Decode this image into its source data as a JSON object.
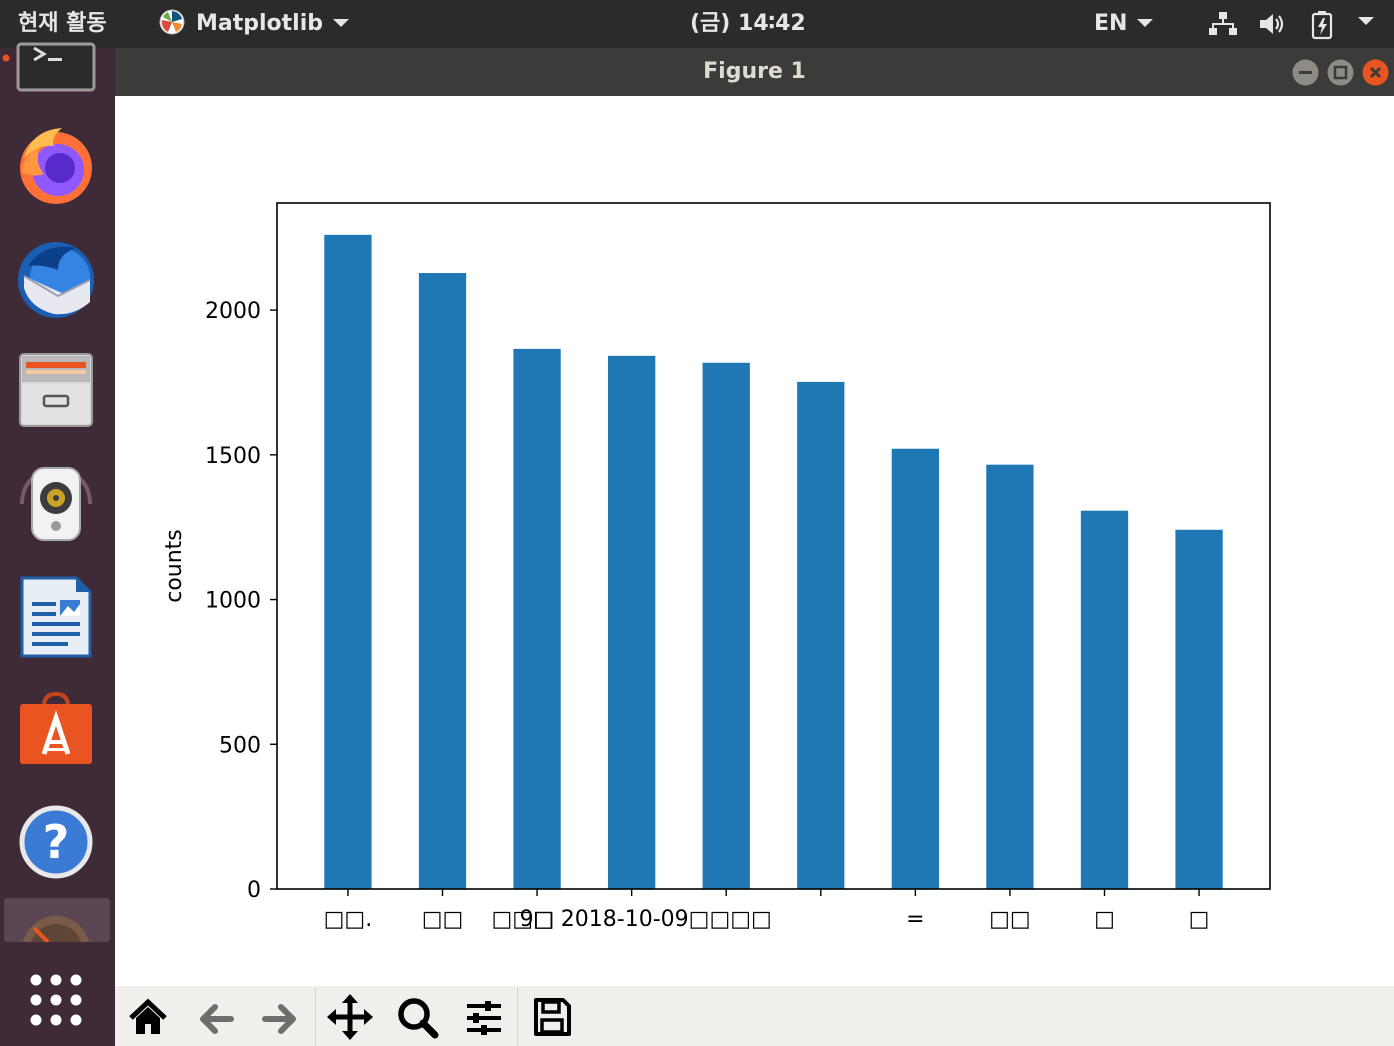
{
  "topbar": {
    "activities": "현재 활동",
    "app_menu": "Matplotlib",
    "clock": "(금) 14∶42",
    "lang": "EN"
  },
  "dock": {
    "items": [
      "terminal",
      "firefox",
      "thunderbird",
      "files",
      "rhythmbox",
      "libreoffice-writer",
      "ubuntu-software",
      "help",
      "settings",
      "show-applications"
    ]
  },
  "window": {
    "title": "Figure 1"
  },
  "toolbar": {
    "tools": [
      "home-icon",
      "back-icon",
      "forward-icon",
      "pan-icon",
      "zoom-icon",
      "configure-subplots-icon",
      "save-icon"
    ]
  },
  "colors": {
    "bar": "#1f77b4",
    "topbar": "#2b2b29",
    "dock": "#3f2a37",
    "titlebar": "#3b3b39",
    "close": "#e95420"
  },
  "chart_data": {
    "type": "bar",
    "categories": [
      "□□.",
      "□□",
      "9□",
      "□□□ 2018-10-09□□□□",
      "",
      "",
      "=",
      "□□",
      "□",
      "□"
    ],
    "values": [
      2260,
      2128,
      1866,
      1842,
      1818,
      1752,
      1521,
      1466,
      1307,
      1241
    ],
    "ylabel": "counts",
    "xlabel": "",
    "title": "",
    "ylim": [
      0,
      2370
    ],
    "yticks": [
      0,
      500,
      1000,
      1500,
      2000
    ],
    "grid": false
  }
}
